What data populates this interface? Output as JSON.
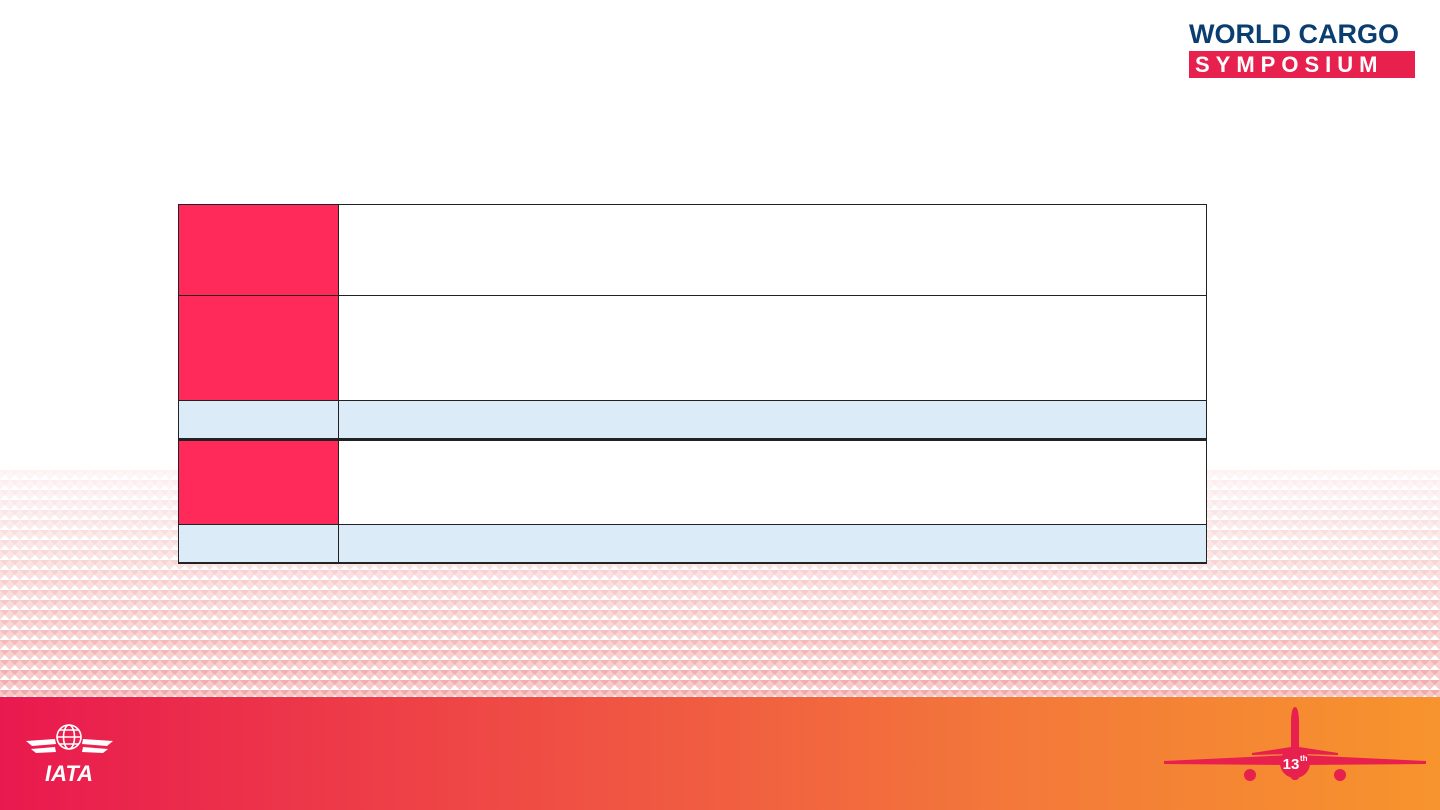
{
  "brand": {
    "logo_line1": "WORLD CARGO",
    "logo_line2": "SYMPOSIUM",
    "footer_logo": "IATA",
    "edition": "13",
    "edition_suffix": "th",
    "colors": {
      "navy": "#0b3e70",
      "red": "#e8204e",
      "table_red": "#ff2a5a",
      "table_blue": "#dcebf8",
      "footer_start": "#e9194f",
      "footer_end": "#f7942d"
    }
  },
  "table": {
    "rows": [
      {
        "style": "red",
        "label": "",
        "content": ""
      },
      {
        "style": "red",
        "label": "",
        "content": ""
      },
      {
        "style": "blue",
        "label": "",
        "content": ""
      },
      {
        "style": "red",
        "label": "",
        "content": ""
      },
      {
        "style": "blue",
        "label": "",
        "content": ""
      }
    ]
  }
}
